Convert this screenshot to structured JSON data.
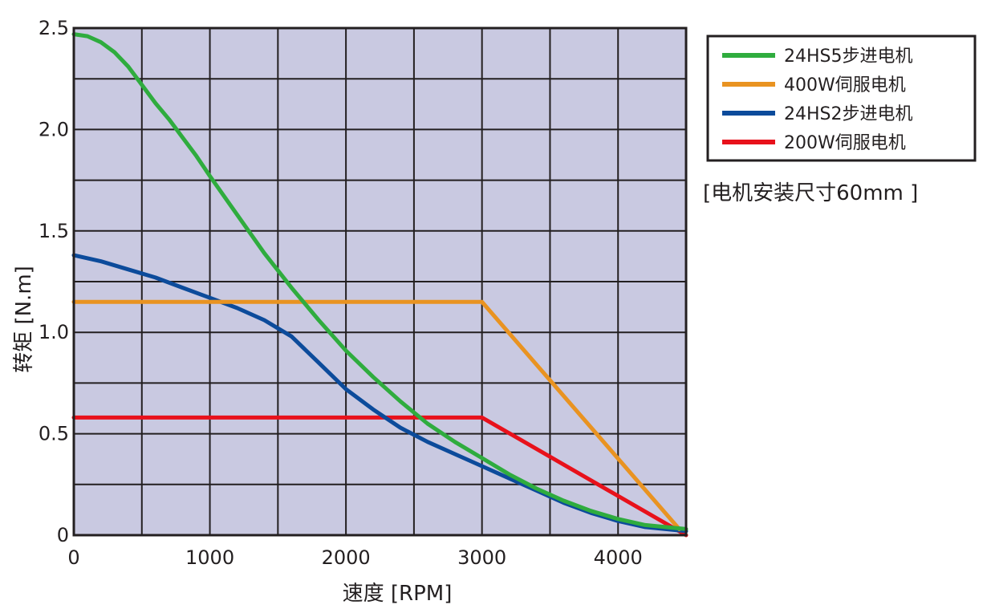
{
  "chart_data": {
    "type": "line",
    "xlabel": "速度 [RPM]",
    "ylabel": "转矩 [N.m]",
    "xlim": [
      0,
      4500
    ],
    "ylim": [
      0,
      2.5
    ],
    "xticks": [
      0,
      1000,
      2000,
      3000,
      4000
    ],
    "xtick_labels": [
      "0",
      "1000",
      "2000",
      "3000",
      "4000"
    ],
    "yticks": [
      0,
      0.5,
      1.0,
      1.5,
      2.0,
      2.5
    ],
    "ytick_labels": [
      "0",
      "0.5",
      "1.0",
      "1.5",
      "2.0",
      "2.5"
    ],
    "grid": true,
    "legend_position": "top-right",
    "annotation": "[电机安装尺寸60mm ]",
    "series": [
      {
        "name": "24HS5步进电机",
        "color": "#2fac3e",
        "x": [
          0,
          100,
          200,
          300,
          400,
          500,
          600,
          700,
          800,
          900,
          1000,
          1200,
          1400,
          1600,
          1800,
          2000,
          2200,
          2400,
          2600,
          2800,
          3000,
          3200,
          3400,
          3600,
          3800,
          4000,
          4200,
          4500
        ],
        "y": [
          2.47,
          2.46,
          2.43,
          2.38,
          2.31,
          2.22,
          2.13,
          2.05,
          1.96,
          1.87,
          1.77,
          1.58,
          1.39,
          1.22,
          1.06,
          0.91,
          0.78,
          0.66,
          0.55,
          0.46,
          0.38,
          0.3,
          0.23,
          0.17,
          0.12,
          0.08,
          0.05,
          0.03
        ]
      },
      {
        "name": "400W伺服电机",
        "color": "#e99321",
        "x": [
          0,
          3000,
          4450
        ],
        "y": [
          1.15,
          1.15,
          0.03
        ]
      },
      {
        "name": "24HS2步进电机",
        "color": "#0c4b9b",
        "x": [
          0,
          200,
          400,
          600,
          800,
          1000,
          1200,
          1400,
          1600,
          1800,
          2000,
          2200,
          2400,
          2600,
          2800,
          3000,
          3200,
          3400,
          3600,
          3800,
          4000,
          4200,
          4500
        ],
        "y": [
          1.38,
          1.35,
          1.31,
          1.27,
          1.22,
          1.17,
          1.12,
          1.06,
          0.98,
          0.85,
          0.72,
          0.62,
          0.53,
          0.46,
          0.4,
          0.34,
          0.28,
          0.22,
          0.16,
          0.11,
          0.07,
          0.04,
          0.02
        ]
      },
      {
        "name": "200W伺服电机",
        "color": "#e8111b",
        "x": [
          0,
          3000,
          4500
        ],
        "y": [
          0.58,
          0.58,
          0.0
        ]
      }
    ]
  }
}
